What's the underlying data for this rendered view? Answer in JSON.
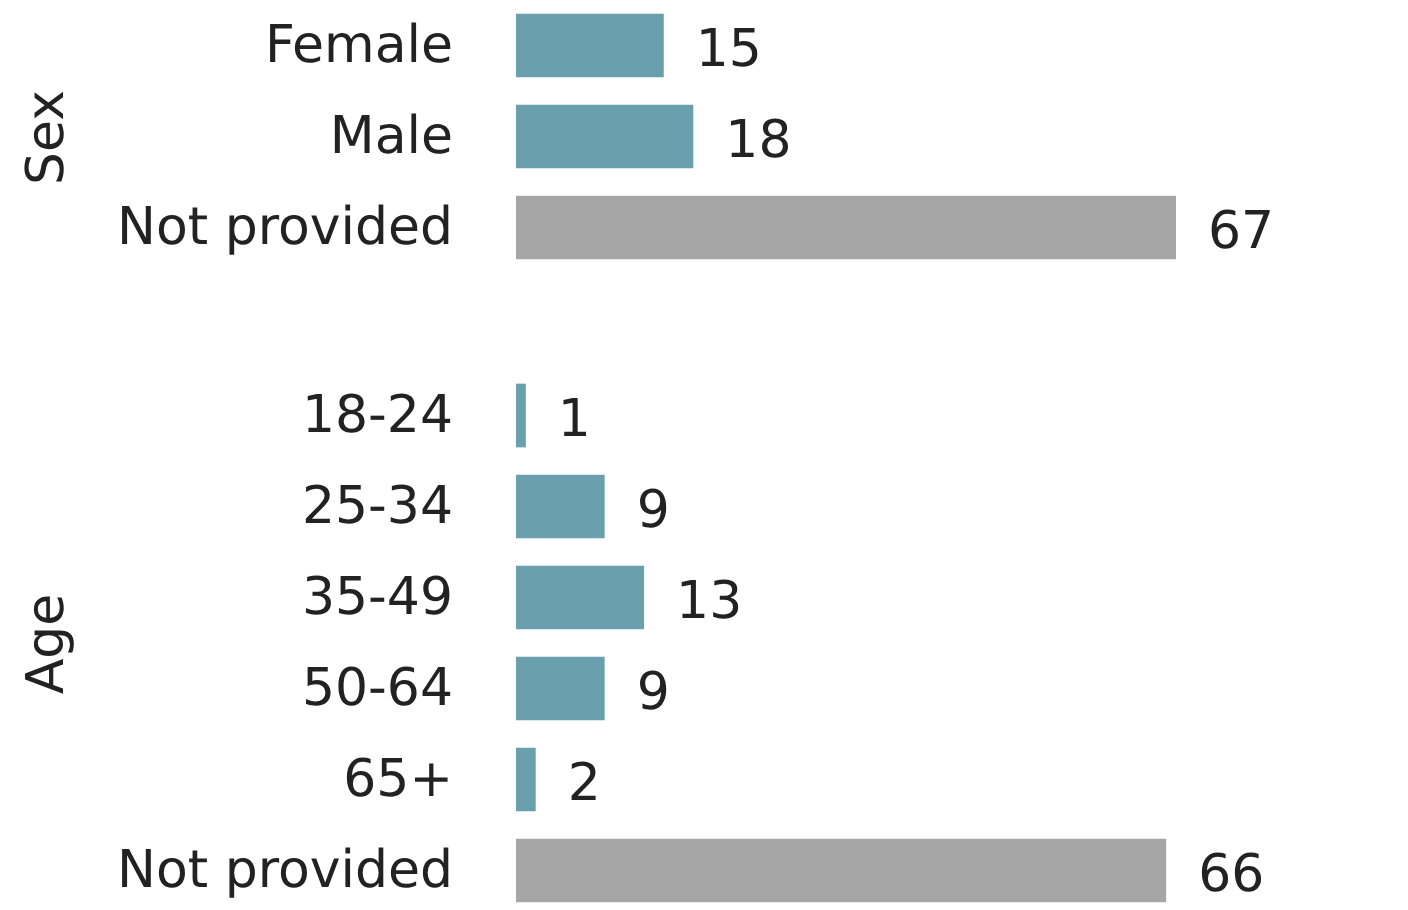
{
  "chart_data": [
    {
      "type": "bar",
      "orientation": "horizontal",
      "ylabel": "Sex",
      "categories": [
        "Female",
        "Male",
        "Not provided"
      ],
      "values": [
        15,
        18,
        67
      ],
      "colors": [
        "#6a9fae",
        "#6a9fae",
        "#a6a6a6"
      ],
      "data_labels": true,
      "tick_labels": "y"
    },
    {
      "type": "bar",
      "orientation": "horizontal",
      "ylabel": "Age",
      "categories": [
        "18-24",
        "25-34",
        "35-49",
        "50-64",
        "65+",
        "Not provided"
      ],
      "values": [
        1,
        9,
        13,
        9,
        2,
        66
      ],
      "colors": [
        "#6a9fae",
        "#6a9fae",
        "#6a9fae",
        "#6a9fae",
        "#6a9fae",
        "#a6a6a6"
      ],
      "data_labels": true,
      "tick_labels": "y"
    }
  ]
}
